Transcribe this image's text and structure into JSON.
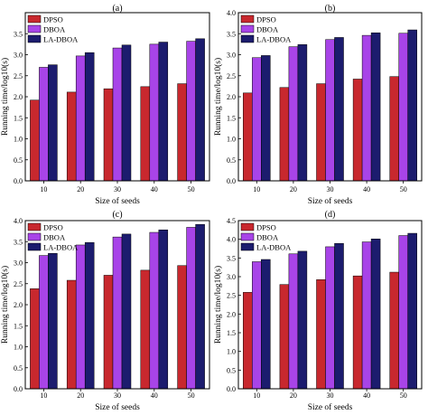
{
  "colors": {
    "DPSO": "#c8282e",
    "DBOA": "#a844e8",
    "LA-DBOA": "#1c1c6e"
  },
  "chart_data": [
    {
      "type": "bar",
      "title": "(a)",
      "xlabel": "Size of seeds",
      "ylabel": "Running time/log10(s)",
      "categories": [
        "10",
        "20",
        "30",
        "40",
        "50"
      ],
      "ylim": [
        0,
        4.0
      ],
      "yticks": [
        "0.0",
        "0.5",
        "1.0",
        "1.5",
        "2.0",
        "2.5",
        "3.0",
        "3.5"
      ],
      "legend_position": "top-left",
      "series": [
        {
          "name": "DPSO",
          "values": [
            1.92,
            2.11,
            2.19,
            2.24,
            2.31
          ]
        },
        {
          "name": "DBOA",
          "values": [
            2.7,
            2.97,
            3.16,
            3.25,
            3.32
          ]
        },
        {
          "name": "LA-DBOA",
          "values": [
            2.76,
            3.05,
            3.23,
            3.3,
            3.38
          ]
        }
      ]
    },
    {
      "type": "bar",
      "title": "(b)",
      "xlabel": "Size of seeds",
      "ylabel": "Running time/log10(s)",
      "categories": [
        "10",
        "20",
        "30",
        "40",
        "50"
      ],
      "ylim": [
        0,
        4.0
      ],
      "yticks": [
        "0.0",
        "0.5",
        "1.0",
        "1.5",
        "2.0",
        "2.5",
        "3.0",
        "3.5",
        "4.0"
      ],
      "legend_position": "top-left",
      "series": [
        {
          "name": "DPSO",
          "values": [
            2.09,
            2.22,
            2.31,
            2.42,
            2.48
          ]
        },
        {
          "name": "DBOA",
          "values": [
            2.93,
            3.19,
            3.36,
            3.46,
            3.51
          ]
        },
        {
          "name": "LA-DBOA",
          "values": [
            2.98,
            3.24,
            3.41,
            3.52,
            3.59
          ]
        }
      ]
    },
    {
      "type": "bar",
      "title": "(c)",
      "xlabel": "Size of seeds",
      "ylabel": "Running time/log10(s)",
      "categories": [
        "10",
        "20",
        "30",
        "40",
        "50"
      ],
      "ylim": [
        0,
        4.0
      ],
      "yticks": [
        "0.0",
        "0.5",
        "1.0",
        "1.5",
        "2.0",
        "2.5",
        "3.0",
        "3.5",
        "4.0"
      ],
      "legend_position": "top-left",
      "series": [
        {
          "name": "DPSO",
          "values": [
            2.38,
            2.58,
            2.7,
            2.82,
            2.93
          ]
        },
        {
          "name": "DBOA",
          "values": [
            3.17,
            3.42,
            3.61,
            3.72,
            3.84
          ]
        },
        {
          "name": "LA-DBOA",
          "values": [
            3.22,
            3.48,
            3.68,
            3.78,
            3.91
          ]
        }
      ]
    },
    {
      "type": "bar",
      "title": "(d)",
      "xlabel": "Size of seeds",
      "ylabel": "Running time/log10(s)",
      "categories": [
        "10",
        "20",
        "30",
        "40",
        "50"
      ],
      "ylim": [
        0,
        4.5
      ],
      "yticks": [
        "0.0",
        "0.5",
        "1.0",
        "1.5",
        "2.0",
        "2.5",
        "3.0",
        "3.5",
        "4.0",
        "4.5"
      ],
      "legend_position": "top-left",
      "series": [
        {
          "name": "DPSO",
          "values": [
            2.58,
            2.79,
            2.92,
            3.02,
            3.12
          ]
        },
        {
          "name": "DBOA",
          "values": [
            3.4,
            3.61,
            3.8,
            3.93,
            4.1
          ]
        },
        {
          "name": "LA-DBOA",
          "values": [
            3.46,
            3.68,
            3.89,
            4.01,
            4.16
          ]
        }
      ]
    }
  ]
}
